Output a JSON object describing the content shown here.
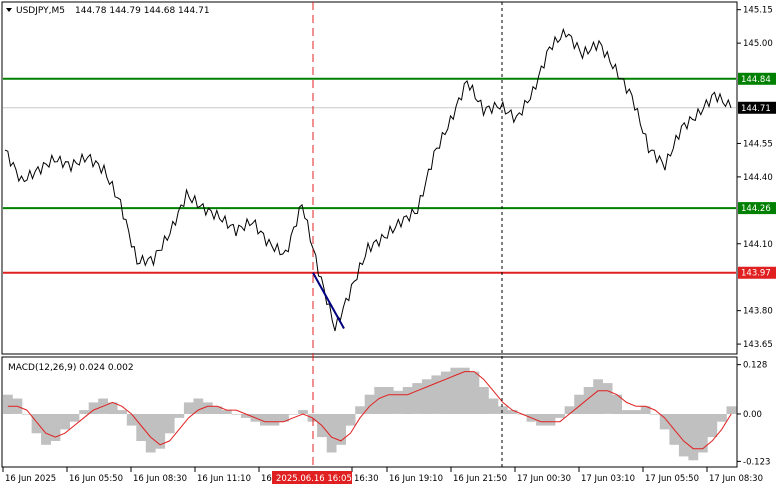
{
  "header": {
    "symbol": "USDJPY,M5",
    "ohlc": "144.78 144.79 144.68 144.71"
  },
  "macd": {
    "label": "MACD(12,26,9) 0.024 0.002"
  },
  "crosshair_time": "2025.06.16 16:05",
  "colors": {
    "price_line": "#000000",
    "support_resistance_green": "#008000",
    "level_red": "#e02020",
    "current_price_box": "#000000",
    "macd_histogram": "#c0c0c0",
    "macd_signal": "#e02020",
    "trend_stroke": "#000080"
  },
  "chart_data": [
    {
      "type": "line",
      "series": [
        {
          "name": "USDJPY,M5",
          "x": [
            "16 Jun 2025 00:00",
            "16 Jun 01:00",
            "16 Jun 02:00",
            "16 Jun 03:00",
            "16 Jun 04:00",
            "16 Jun 05:00",
            "16 Jun 05:50",
            "16 Jun 07:00",
            "16 Jun 08:00",
            "16 Jun 08:30",
            "16 Jun 09:00",
            "16 Jun 10:00",
            "16 Jun 11:00",
            "16 Jun 11:10",
            "16 Jun 12:00",
            "16 Jun 13:00",
            "16 Jun 14:00",
            "16 Jun 14:30",
            "16 Jun 15:00",
            "16 Jun 16:05",
            "16 Jun 16:30",
            "16 Jun 17:00",
            "16 Jun 17:30",
            "16 Jun 18:00",
            "16 Jun 19:00",
            "16 Jun 19:10",
            "16 Jun 20:00",
            "16 Jun 21:00",
            "16 Jun 21:50",
            "16 Jun 23:00",
            "17 Jun 00:00",
            "17 Jun 00:30",
            "17 Jun 01:30",
            "17 Jun 02:00",
            "17 Jun 02:30",
            "17 Jun 03:10",
            "17 Jun 04:00",
            "17 Jun 04:30",
            "17 Jun 05:00",
            "17 Jun 05:50",
            "17 Jun 06:30",
            "17 Jun 07:00",
            "17 Jun 07:30",
            "17 Jun 08:00",
            "17 Jun 08:30"
          ],
          "y": [
            144.52,
            144.38,
            144.43,
            144.48,
            144.45,
            144.49,
            144.43,
            144.28,
            144.02,
            144.03,
            144.15,
            144.32,
            144.26,
            144.22,
            144.16,
            144.2,
            144.1,
            144.05,
            144.28,
            143.98,
            143.72,
            143.9,
            144.08,
            144.13,
            144.2,
            144.25,
            144.5,
            144.65,
            144.83,
            144.7,
            144.72,
            144.66,
            144.78,
            144.98,
            145.05,
            144.95,
            145.0,
            144.88,
            144.76,
            144.53,
            144.45,
            144.62,
            144.68,
            144.77,
            144.71
          ]
        }
      ],
      "trend_segment": {
        "x": [
          "16 Jun 16:05",
          "16 Jun 17:00"
        ],
        "y": [
          143.97,
          143.72
        ]
      },
      "horizontal_levels": [
        {
          "value": 144.84,
          "label": "144.84",
          "color": "green"
        },
        {
          "value": 144.26,
          "label": "144.26",
          "color": "green"
        },
        {
          "value": 143.97,
          "label": "143.97",
          "color": "red"
        }
      ],
      "current_price": {
        "value": 144.71,
        "label": "144.71"
      },
      "yticks": [
        "145.15",
        "145.00",
        "144.84",
        "144.71",
        "144.55",
        "144.40",
        "144.26",
        "144.10",
        "143.97",
        "143.80",
        "143.65"
      ],
      "ylim": [
        143.61,
        145.18
      ]
    },
    {
      "type": "bar",
      "title": "MACD(12,26,9) 0.024 0.002",
      "yticks": [
        "0.128",
        "0.00",
        "-0.123"
      ],
      "ylim": [
        -0.135,
        0.14
      ],
      "histogram": [
        0.05,
        0.04,
        0.0,
        -0.05,
        -0.08,
        -0.07,
        -0.04,
        -0.02,
        0.01,
        0.03,
        0.04,
        0.03,
        0.01,
        -0.03,
        -0.07,
        -0.1,
        -0.09,
        -0.05,
        -0.01,
        0.03,
        0.04,
        0.03,
        0.02,
        0.01,
        0.0,
        -0.01,
        -0.02,
        -0.03,
        -0.03,
        -0.02,
        0.0,
        0.01,
        -0.02,
        -0.06,
        -0.1,
        -0.08,
        -0.03,
        0.02,
        0.05,
        0.07,
        0.07,
        0.06,
        0.07,
        0.08,
        0.09,
        0.1,
        0.11,
        0.12,
        0.12,
        0.11,
        0.07,
        0.04,
        0.02,
        0.01,
        0.0,
        -0.02,
        -0.03,
        -0.03,
        -0.01,
        0.02,
        0.05,
        0.07,
        0.09,
        0.08,
        0.05,
        0.01,
        0.01,
        0.02,
        0.0,
        -0.04,
        -0.08,
        -0.11,
        -0.12,
        -0.1,
        -0.06,
        -0.02,
        0.02
      ],
      "signal": [
        0.02,
        0.02,
        0.01,
        -0.02,
        -0.05,
        -0.06,
        -0.05,
        -0.03,
        -0.01,
        0.01,
        0.02,
        0.03,
        0.02,
        0.0,
        -0.03,
        -0.06,
        -0.08,
        -0.07,
        -0.04,
        -0.01,
        0.01,
        0.02,
        0.02,
        0.01,
        0.01,
        0.0,
        -0.01,
        -0.02,
        -0.02,
        -0.02,
        -0.01,
        0.0,
        -0.01,
        -0.03,
        -0.06,
        -0.07,
        -0.05,
        -0.01,
        0.02,
        0.04,
        0.05,
        0.05,
        0.05,
        0.06,
        0.07,
        0.08,
        0.09,
        0.1,
        0.11,
        0.11,
        0.09,
        0.06,
        0.03,
        0.01,
        0.0,
        -0.01,
        -0.02,
        -0.02,
        -0.02,
        0.0,
        0.02,
        0.04,
        0.06,
        0.06,
        0.05,
        0.03,
        0.02,
        0.02,
        0.01,
        -0.01,
        -0.04,
        -0.07,
        -0.09,
        -0.09,
        -0.07,
        -0.04,
        0.0
      ]
    }
  ],
  "time_axis": [
    "16 Jun 2025",
    "16 Jun 05:50",
    "16 Jun 08:30",
    "16 Jun 11:10",
    "16",
    "16:30",
    "16 Jun 19:10",
    "16 Jun 21:50",
    "17 Jun 00:30",
    "17 Jun 03:10",
    "17 Jun 05:50",
    "17 Jun 08:30"
  ]
}
